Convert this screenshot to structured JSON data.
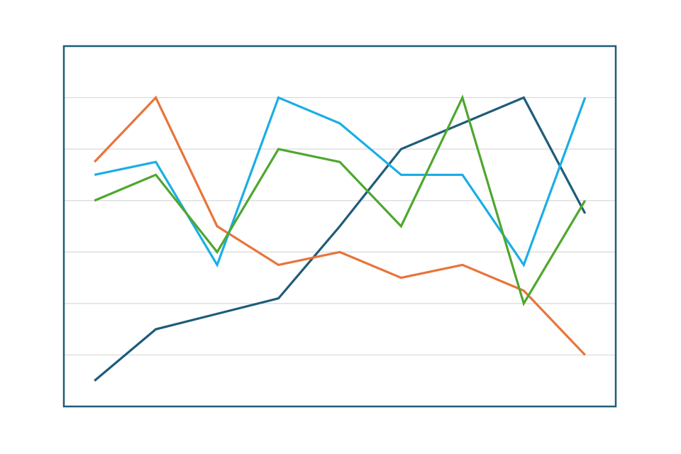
{
  "chart_data": {
    "type": "line",
    "categories": [
      null,
      null,
      null,
      null,
      null,
      null,
      null,
      null,
      null
    ],
    "series": [
      {
        "color": "#1f5c7a",
        "values": [
          0.5,
          1.5,
          1.8,
          2.1,
          3.5,
          5,
          5.5,
          6,
          3.75
        ]
      },
      {
        "color": "#e8743b",
        "values": [
          4.75,
          6,
          3.5,
          2.75,
          3,
          2.5,
          2.75,
          2.25,
          1
        ]
      },
      {
        "color": "#1aaee5",
        "values": [
          4.5,
          4.75,
          2.75,
          6,
          5.5,
          4.5,
          4.5,
          2.75,
          6
        ]
      },
      {
        "color": "#4ea72e",
        "values": [
          4,
          4.5,
          3,
          5,
          4.75,
          3.5,
          6,
          2,
          4
        ]
      }
    ],
    "ylim": [
      0,
      7
    ],
    "yticks": [
      1,
      2,
      3,
      4,
      5,
      6
    ],
    "grid": true
  }
}
